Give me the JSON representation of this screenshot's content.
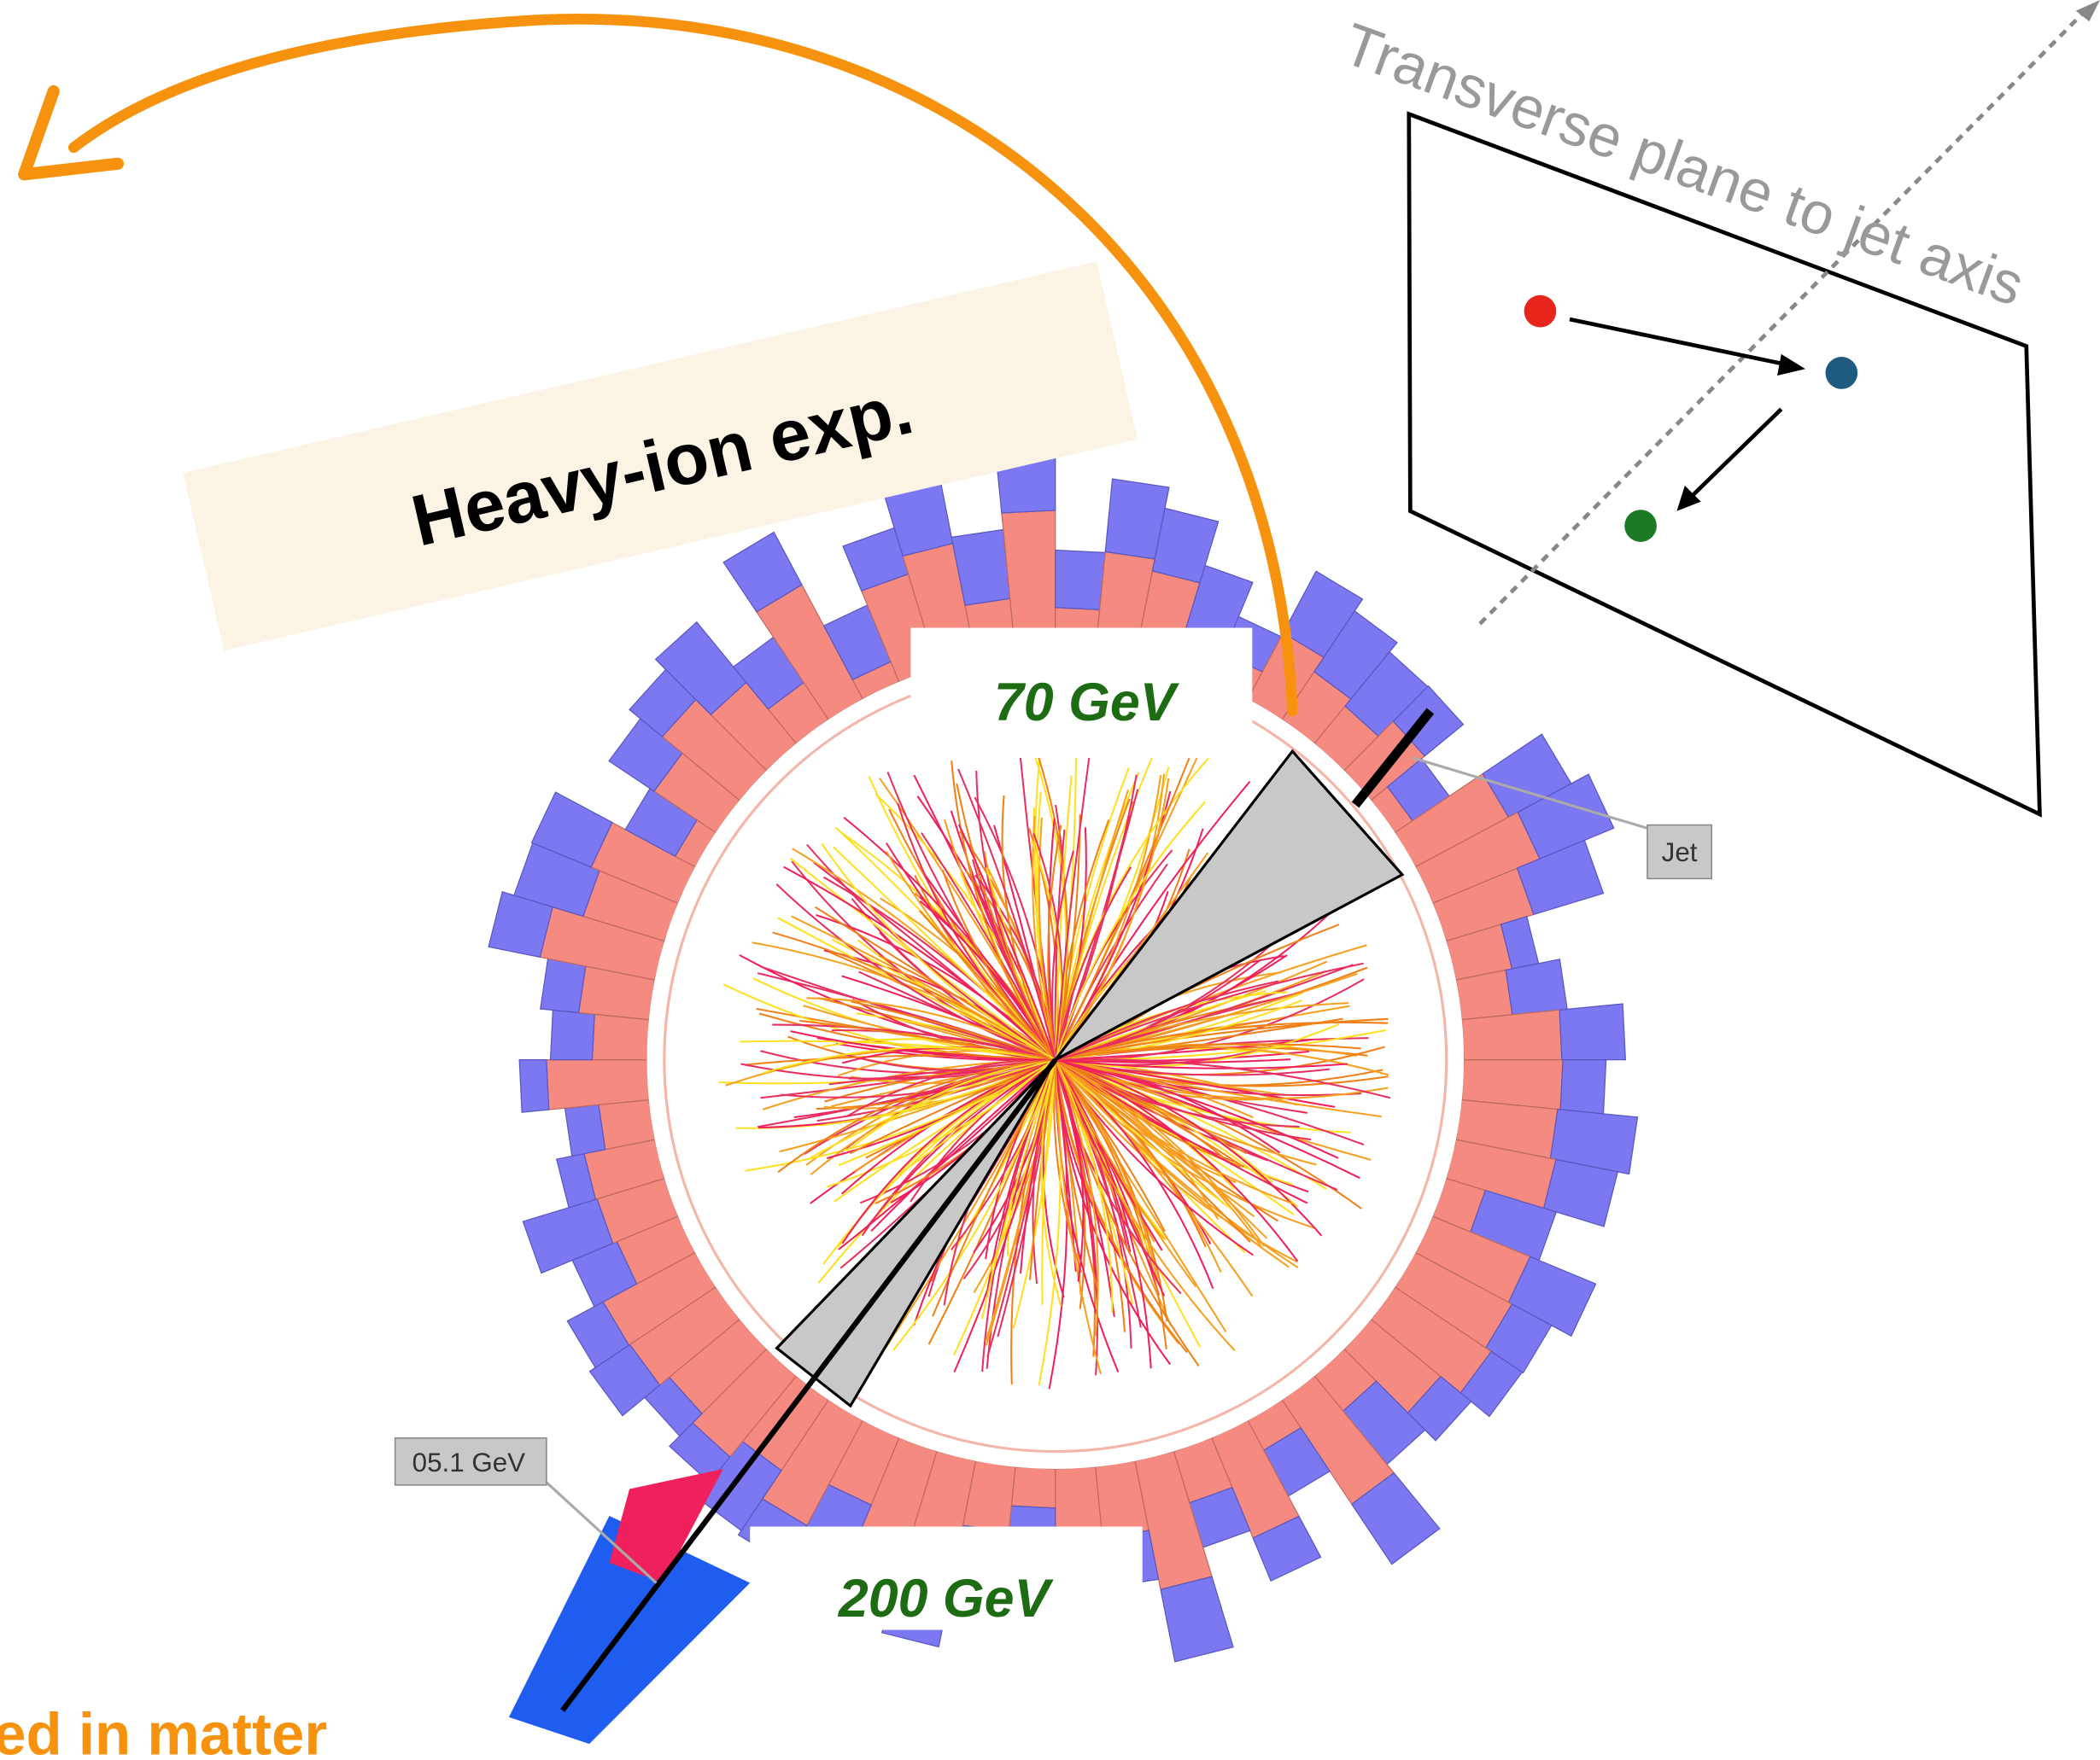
{
  "banner": {
    "title": "Heavy-ion exp."
  },
  "event_display": {
    "upper_jet_energy": "70 GeV",
    "lower_jet_energy": "200 GeV",
    "jet_tag": "Jet",
    "energy_tag": "05.1 GeV"
  },
  "plane": {
    "caption": "Transverse plane to jet axis"
  },
  "footer": {
    "note": "ed in matter"
  }
}
